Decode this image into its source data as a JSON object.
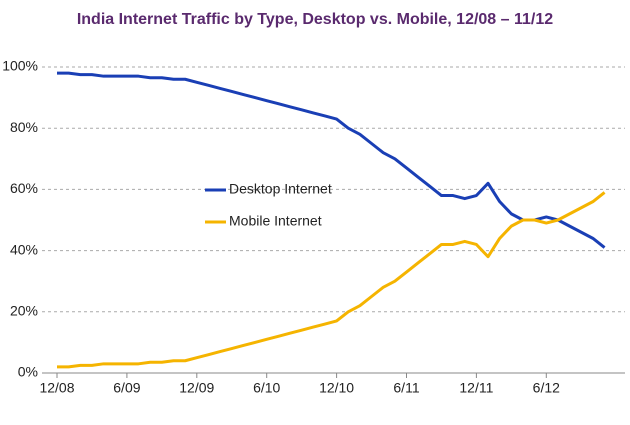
{
  "chart_data": {
    "type": "line",
    "title": "India Internet Traffic by Type, Desktop vs. Mobile, 12/08 – 11/12",
    "categories": [
      "12/08",
      null,
      null,
      null,
      null,
      null,
      "6/09",
      null,
      null,
      null,
      null,
      null,
      "12/09",
      null,
      null,
      null,
      null,
      null,
      "6/10",
      null,
      null,
      null,
      null,
      null,
      "12/10",
      null,
      null,
      null,
      null,
      null,
      "6/11",
      null,
      null,
      null,
      null,
      null,
      "12/11",
      null,
      null,
      null,
      null,
      null,
      "6/12",
      null,
      null,
      null,
      null,
      null
    ],
    "series": [
      {
        "name": "Desktop Internet",
        "color": "#1a3fb5",
        "values": [
          98,
          98,
          97.5,
          97.5,
          97,
          97,
          97,
          97,
          96.5,
          96.5,
          96,
          96,
          95,
          94,
          93,
          92,
          91,
          90,
          89,
          88,
          87,
          86,
          85,
          84,
          83,
          80,
          78,
          75,
          72,
          70,
          67,
          64,
          61,
          58,
          58,
          57,
          58,
          62,
          56,
          52,
          50,
          50,
          51,
          50,
          48,
          46,
          44,
          41
        ]
      },
      {
        "name": "Mobile Internet",
        "color": "#f5b400",
        "values": [
          2,
          2,
          2.5,
          2.5,
          3,
          3,
          3,
          3,
          3.5,
          3.5,
          4,
          4,
          5,
          6,
          7,
          8,
          9,
          10,
          11,
          12,
          13,
          14,
          15,
          16,
          17,
          20,
          22,
          25,
          28,
          30,
          33,
          36,
          39,
          42,
          42,
          43,
          42,
          38,
          44,
          48,
          50,
          50,
          49,
          50,
          52,
          54,
          56,
          59
        ]
      }
    ],
    "ylim": [
      0,
      100
    ],
    "yticks": [
      {
        "value": 0,
        "label": "0%"
      },
      {
        "value": 20,
        "label": "20%"
      },
      {
        "value": 40,
        "label": "40%"
      },
      {
        "value": 60,
        "label": "60%"
      },
      {
        "value": 80,
        "label": "80%"
      },
      {
        "value": 100,
        "label": "100%"
      }
    ],
    "grid": true
  }
}
